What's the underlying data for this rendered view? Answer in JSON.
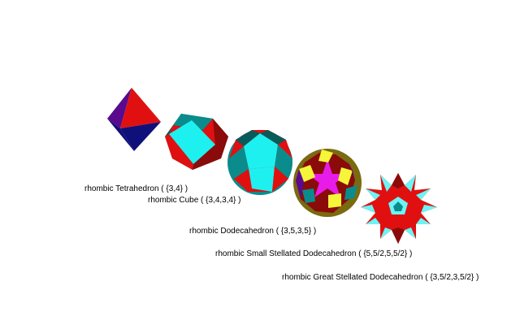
{
  "colors": {
    "red": "#e01010",
    "dark_red": "#8b0a0a",
    "navy": "#10107a",
    "purple": "#5a0a8c",
    "cyan": "#1ef0f0",
    "teal": "#0a8c8c",
    "dark_teal": "#0a5a5a",
    "yellow": "#f5f53a",
    "magenta": "#e81ce8",
    "olive": "#7a6a10",
    "light_cyan": "#6cf4f4"
  },
  "figures": [
    {
      "name": "rhombic Tetrahedron",
      "symbol": "{3,4}",
      "label": "rhombic Tetrahedron ( {3,4} )"
    },
    {
      "name": "rhombic Cube",
      "symbol": "{3,4,3,4}",
      "label": "rhombic Cube ( {3,4,3,4} )"
    },
    {
      "name": "rhombic Dodecahedron",
      "symbol": "{3,5,3,5}",
      "label": "rhombic Dodecahedron ( {3,5,3,5} )"
    },
    {
      "name": "rhombic Small Stellated Dodecahedron",
      "symbol": "{5,5/2,5,5/2}",
      "label": "rhombic Small Stellated Dodecahedron ( {5,5/2,5,5/2} )"
    },
    {
      "name": "rhombic Great Stellated Dodecahedron",
      "symbol": "{3,5/2,3,5/2}",
      "label": "rhombic Great Stellated Dodecahedron ( {3,5/2,3,5/2} )"
    }
  ]
}
